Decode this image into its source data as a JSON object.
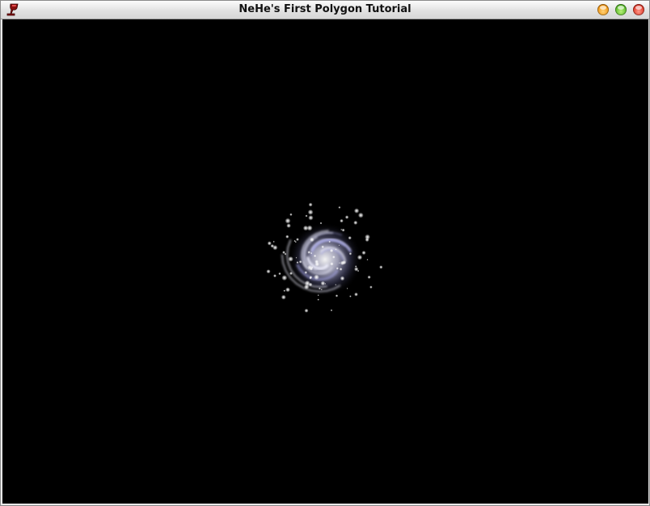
{
  "window": {
    "title": "NeHe's First Polygon Tutorial",
    "app_icon": "wine-glass-icon",
    "buttons": [
      {
        "name": "minimize-button",
        "icon": "orange-orb-icon",
        "color": "#f29a18"
      },
      {
        "name": "maximize-button",
        "icon": "green-orb-icon",
        "color": "#5cbc2c"
      },
      {
        "name": "close-button",
        "icon": "red-orb-icon",
        "color": "#e03a2a"
      }
    ]
  },
  "scene": {
    "background": "#000000",
    "particle_color": "#ffffff",
    "glow_color": "#c8c8ff",
    "content": "particle-swirl"
  }
}
